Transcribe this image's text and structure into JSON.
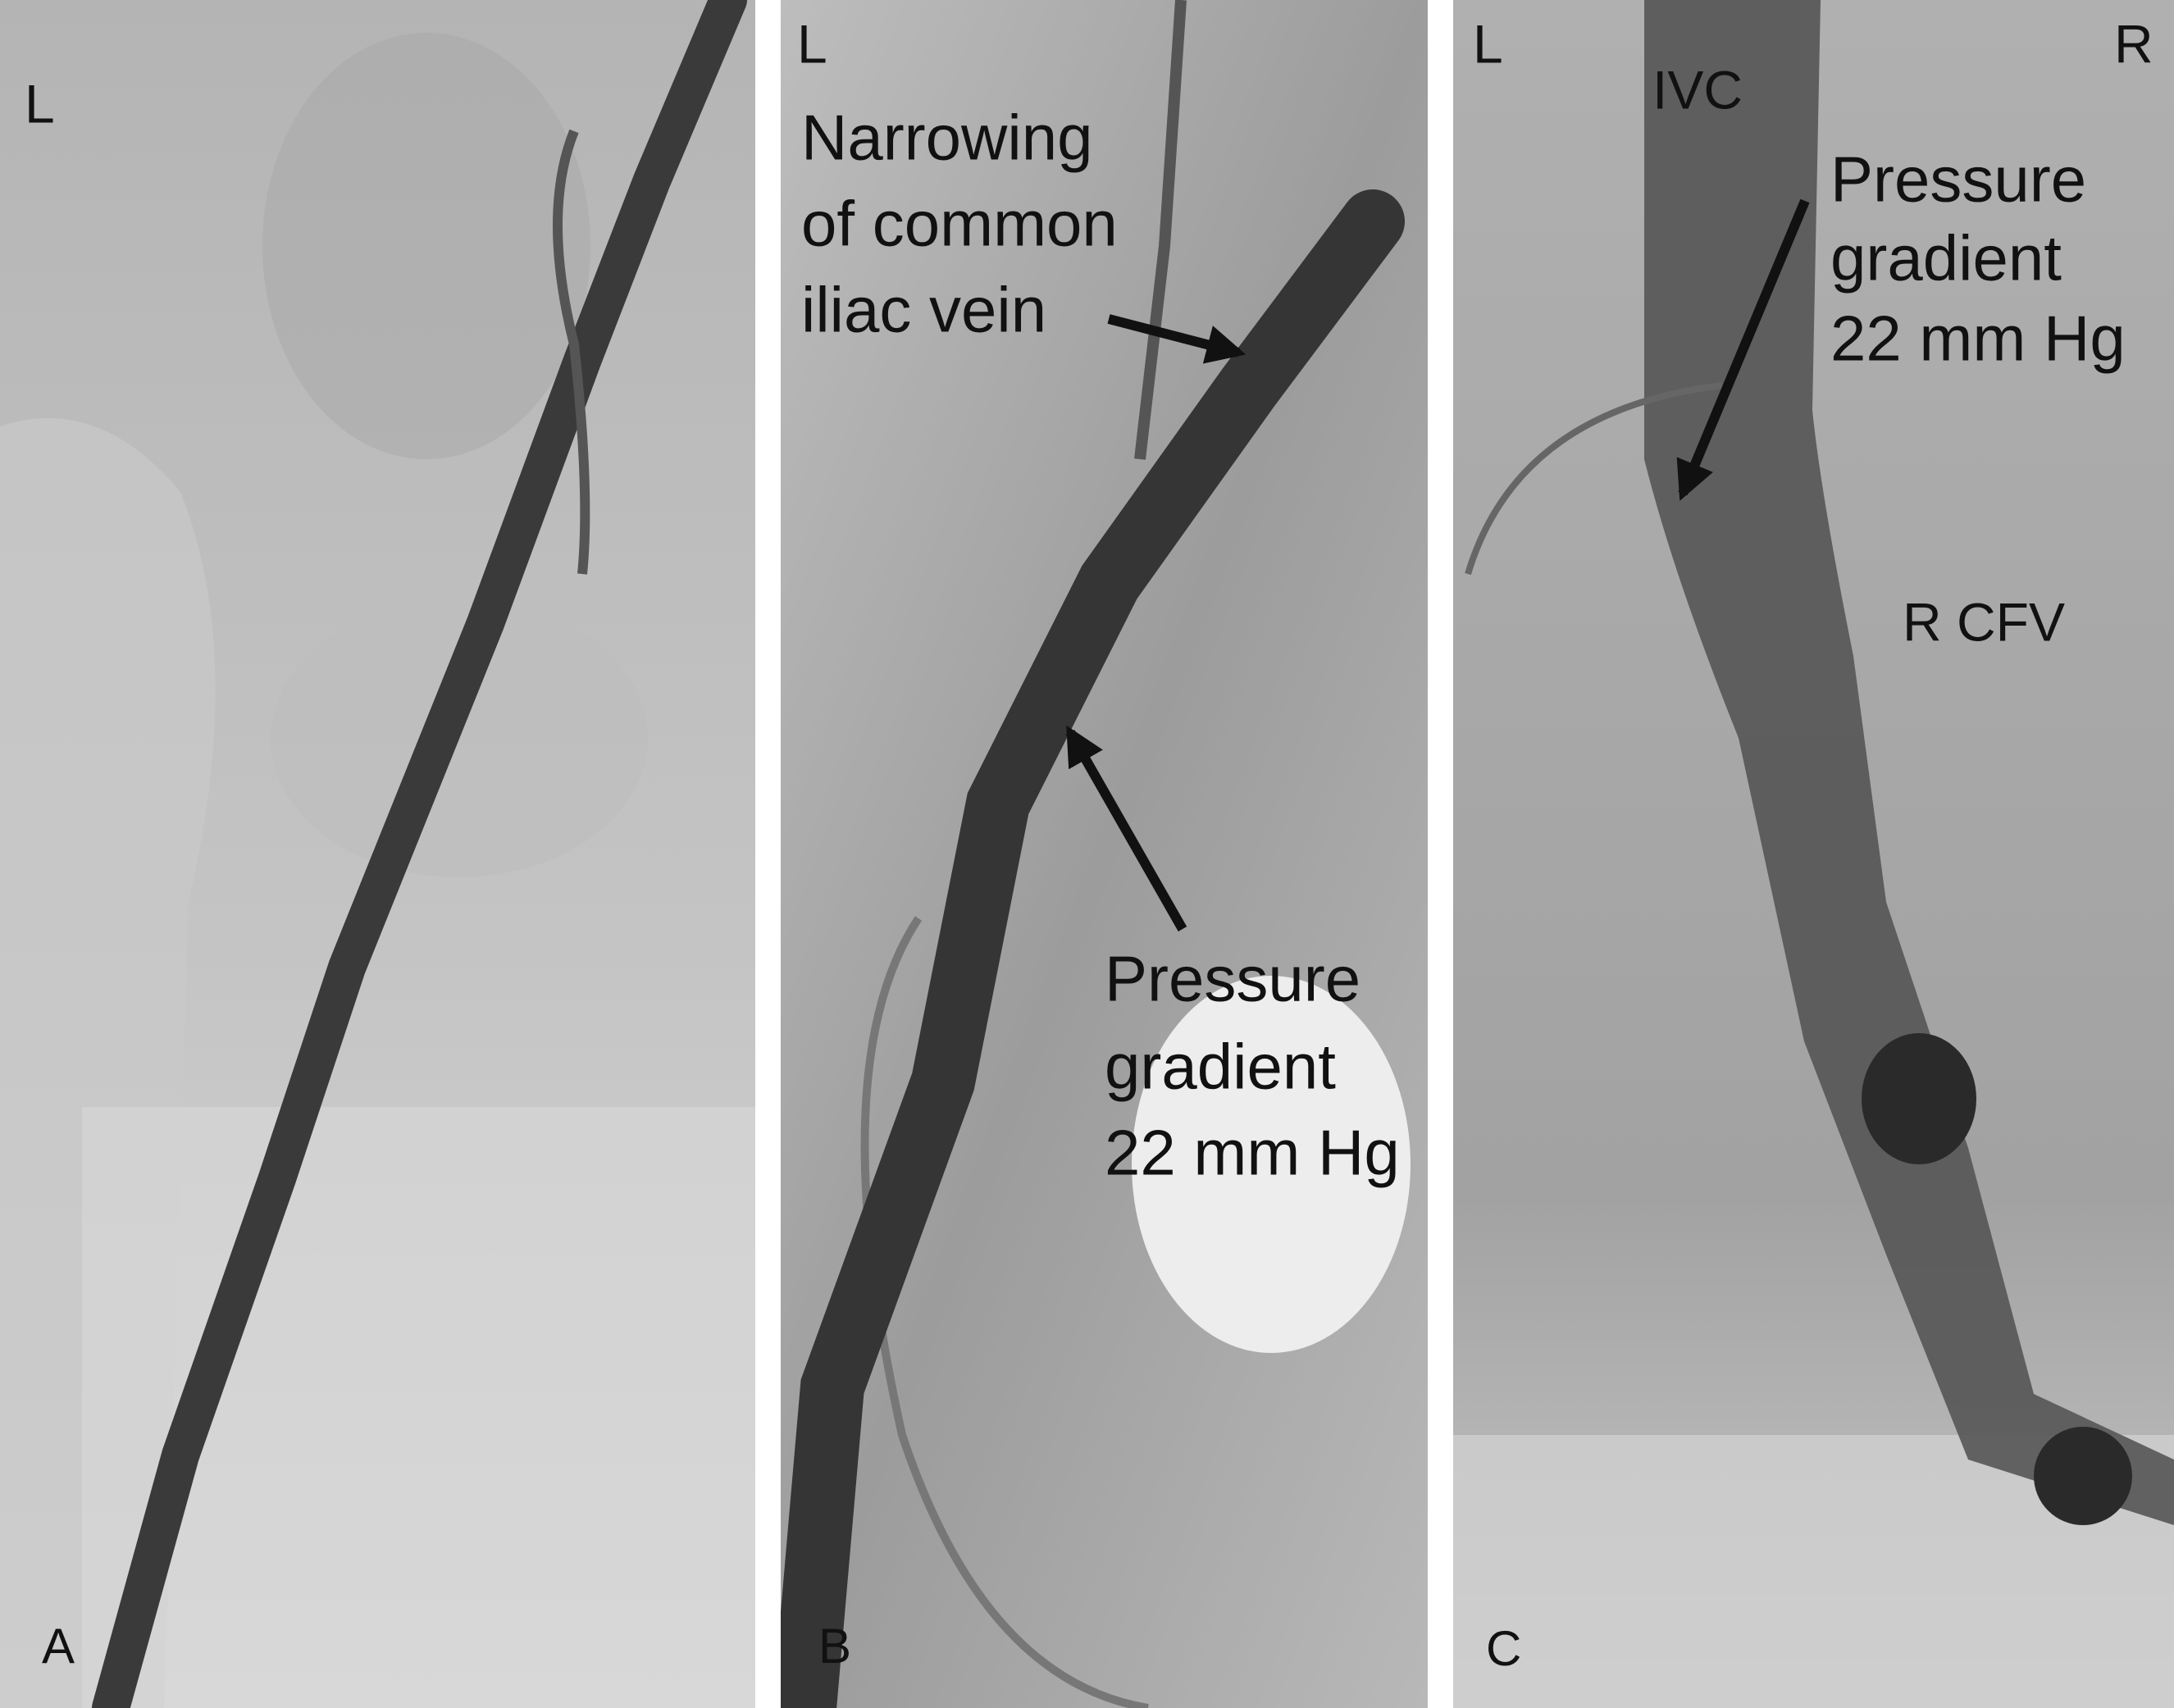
{
  "panels": [
    {
      "letter": "A",
      "orientation": [
        "L"
      ]
    },
    {
      "letter": "B",
      "orientation": [
        "L"
      ],
      "annotations": [
        [
          "Narrowing",
          "of common",
          "iliac vein"
        ],
        [
          "Pressure",
          "gradient",
          "22 mm Hg"
        ]
      ]
    },
    {
      "letter": "C",
      "orientation": [
        "L",
        "R"
      ],
      "annotations": [
        [
          "IVC"
        ],
        [
          "Pressure",
          "gradient",
          "22 mm Hg"
        ],
        [
          "R CFV"
        ]
      ]
    }
  ]
}
